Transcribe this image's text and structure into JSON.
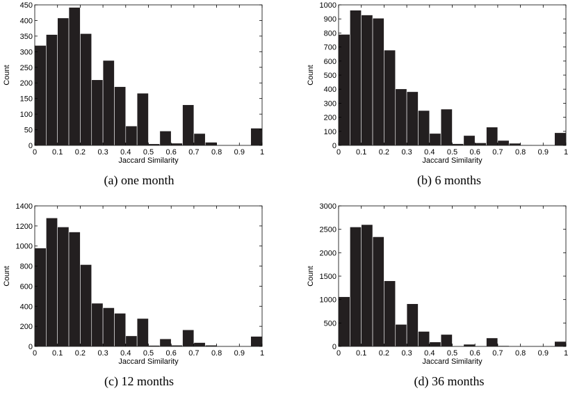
{
  "chart_data": [
    {
      "type": "bar",
      "caption": "(a) one month",
      "xlabel": "Jaccard Similarity",
      "ylabel": "Count",
      "xlim": [
        0,
        1
      ],
      "ylim": [
        0,
        450
      ],
      "xticks": [
        "0",
        "0.1",
        "0.2",
        "0.3",
        "0.4",
        "0.5",
        "0.6",
        "0.7",
        "0.8",
        "0.9",
        "1"
      ],
      "yticks": [
        "0",
        "50",
        "100",
        "150",
        "200",
        "250",
        "300",
        "350",
        "400",
        "450"
      ],
      "bin_width": 0.05,
      "bin_starts": [
        0,
        0.05,
        0.1,
        0.15,
        0.2,
        0.25,
        0.3,
        0.35,
        0.4,
        0.45,
        0.5,
        0.55,
        0.6,
        0.65,
        0.7,
        0.75,
        0.8,
        0.85,
        0.9,
        0.95
      ],
      "values": [
        320,
        355,
        408,
        442,
        358,
        210,
        272,
        188,
        62,
        167,
        5,
        46,
        7,
        130,
        38,
        10,
        1,
        1,
        1,
        55
      ],
      "bar_color": "#231f20",
      "grid": false
    },
    {
      "type": "bar",
      "caption": "(b) 6 months",
      "xlabel": "Jaccard Similarity",
      "ylabel": "Count",
      "xlim": [
        0,
        1
      ],
      "ylim": [
        0,
        1000
      ],
      "xticks": [
        "0",
        "0.1",
        "0.2",
        "0.3",
        "0.4",
        "0.5",
        "0.6",
        "0.7",
        "0.8",
        "0.9",
        "1"
      ],
      "yticks": [
        "0",
        "100",
        "200",
        "300",
        "400",
        "500",
        "600",
        "700",
        "800",
        "900",
        "1000"
      ],
      "bin_width": 0.05,
      "bin_starts": [
        0,
        0.05,
        0.1,
        0.15,
        0.2,
        0.25,
        0.3,
        0.35,
        0.4,
        0.45,
        0.5,
        0.55,
        0.6,
        0.65,
        0.7,
        0.75,
        0.8,
        0.85,
        0.9,
        0.95
      ],
      "values": [
        790,
        962,
        928,
        905,
        678,
        402,
        382,
        248,
        85,
        258,
        12,
        70,
        18,
        130,
        35,
        15,
        3,
        2,
        3,
        90
      ],
      "bar_color": "#231f20",
      "grid": false
    },
    {
      "type": "bar",
      "caption": "(c) 12 months",
      "xlabel": "Jaccard Similarity",
      "ylabel": "Count",
      "xlim": [
        0,
        1
      ],
      "ylim": [
        0,
        1400
      ],
      "xticks": [
        "0",
        "0.1",
        "0.2",
        "0.3",
        "0.4",
        "0.5",
        "0.6",
        "0.7",
        "0.8",
        "0.9",
        "1"
      ],
      "yticks": [
        "0",
        "200",
        "400",
        "600",
        "800",
        "1000",
        "1200",
        "1400"
      ],
      "bin_width": 0.05,
      "bin_starts": [
        0,
        0.05,
        0.1,
        0.15,
        0.2,
        0.25,
        0.3,
        0.35,
        0.4,
        0.45,
        0.5,
        0.55,
        0.6,
        0.65,
        0.7,
        0.75,
        0.8,
        0.85,
        0.9,
        0.95
      ],
      "values": [
        980,
        1280,
        1190,
        1140,
        815,
        430,
        385,
        330,
        105,
        278,
        10,
        75,
        12,
        165,
        38,
        12,
        2,
        2,
        3,
        100
      ],
      "bar_color": "#231f20",
      "grid": false
    },
    {
      "type": "bar",
      "caption": "(d) 36 months",
      "xlabel": "Jaccard Similarity",
      "ylabel": "Count",
      "xlim": [
        0,
        1
      ],
      "ylim": [
        0,
        3000
      ],
      "xticks": [
        "0",
        "0.1",
        "0.2",
        "0.3",
        "0.4",
        "0.5",
        "0.6",
        "0.7",
        "0.8",
        "0.9",
        "1"
      ],
      "yticks": [
        "0",
        "500",
        "1000",
        "1500",
        "2000",
        "2500",
        "3000"
      ],
      "bin_width": 0.05,
      "bin_starts": [
        0,
        0.05,
        0.1,
        0.15,
        0.2,
        0.25,
        0.3,
        0.35,
        0.4,
        0.45,
        0.5,
        0.55,
        0.6,
        0.65,
        0.7,
        0.75,
        0.8,
        0.85,
        0.9,
        0.95
      ],
      "values": [
        1060,
        2550,
        2600,
        2340,
        1400,
        470,
        910,
        320,
        95,
        255,
        5,
        45,
        8,
        180,
        15,
        5,
        2,
        2,
        3,
        105
      ],
      "bar_color": "#231f20",
      "grid": false
    }
  ]
}
